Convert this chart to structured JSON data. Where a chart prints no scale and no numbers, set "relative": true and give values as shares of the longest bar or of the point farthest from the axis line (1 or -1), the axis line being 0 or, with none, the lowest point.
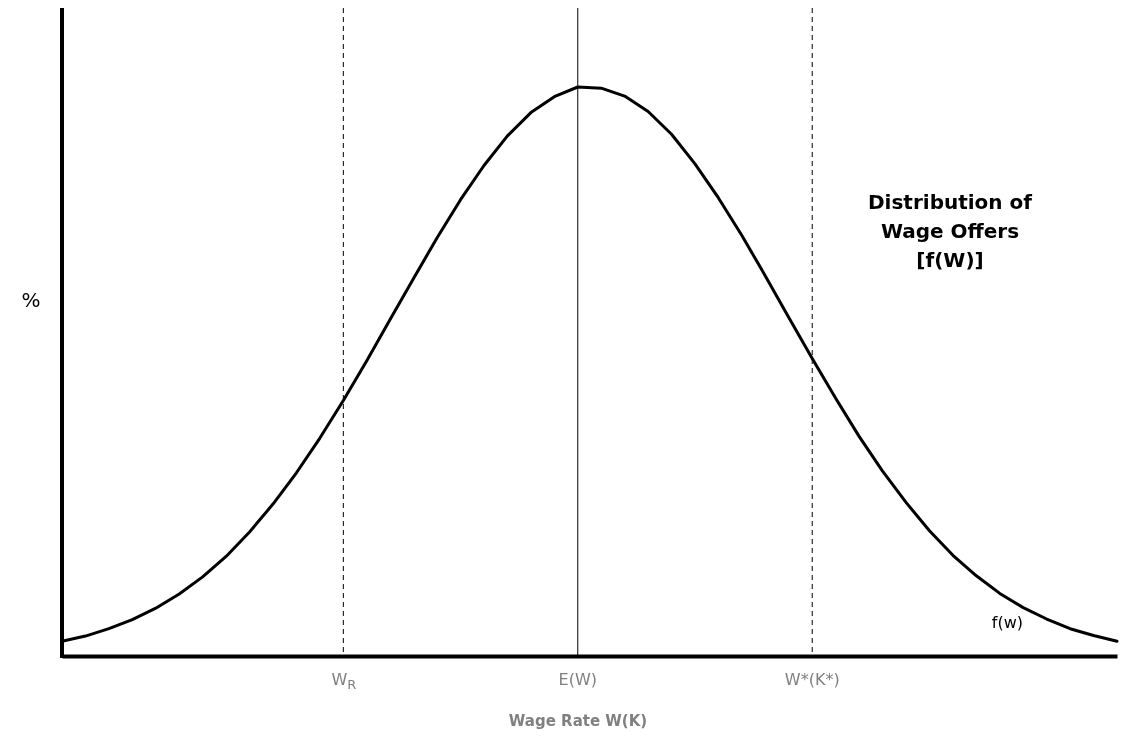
{
  "chart_data": {
    "type": "line",
    "relative": true,
    "xlabel": "Wage Rate W(K)",
    "ylabel": "%",
    "tick_labels": "x",
    "grid": false,
    "marker": "none",
    "line_style": "solid",
    "categories": [
      null,
      null,
      null,
      null,
      null,
      null,
      null,
      null,
      null,
      null,
      null,
      null,
      "W$_{R}$",
      null,
      null,
      null,
      null,
      null,
      null,
      null,
      null,
      null,
      "E(W)",
      null,
      null,
      null,
      null,
      null,
      null,
      null,
      null,
      null,
      "W*(K*)",
      null,
      null,
      null,
      null,
      null,
      null,
      null,
      null,
      null,
      null,
      null,
      null,
      null
    ],
    "series": [
      {
        "name": "f(w)",
        "color": "#000000",
        "values": [
          0.026,
          0.035,
          0.048,
          0.064,
          0.084,
          0.109,
          0.139,
          0.175,
          0.218,
          0.267,
          0.322,
          0.383,
          0.449,
          0.519,
          0.592,
          0.664,
          0.735,
          0.802,
          0.862,
          0.914,
          0.955,
          0.983,
          1,
          0.998,
          0.984,
          0.957,
          0.917,
          0.865,
          0.805,
          0.739,
          0.668,
          0.595,
          0.523,
          0.453,
          0.386,
          0.325,
          0.27,
          0.22,
          0.177,
          0.141,
          0.11,
          0.085,
          0.065,
          0.048,
          0.036,
          0.026
        ]
      }
    ],
    "ref_lines": [
      {
        "axis": "x",
        "value": "W$_{R}$",
        "line_style": "dashed"
      },
      {
        "axis": "x",
        "value": "E(W)",
        "line_style": "solid"
      },
      {
        "axis": "x",
        "value": "W*(K*)",
        "line_style": "dashed"
      }
    ],
    "annotations": [
      "Distribution of Wage Offers [f(W)]"
    ]
  }
}
